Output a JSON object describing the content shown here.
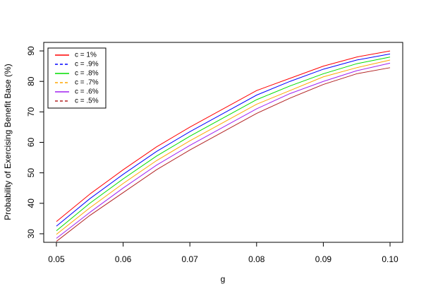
{
  "chart_data": {
    "type": "line",
    "x_label": "g",
    "y_label": "Probability of Exercising Benefit Base (%)",
    "x": [
      0.05,
      0.055,
      0.06,
      0.065,
      0.07,
      0.075,
      0.08,
      0.085,
      0.09,
      0.095,
      0.1
    ],
    "series": [
      {
        "name": "c = 1%",
        "color": "#ff0000",
        "linestyle": "solid",
        "values": [
          34,
          43,
          51,
          58.5,
          65,
          71,
          77,
          81,
          85,
          88,
          90
        ]
      },
      {
        "name": "c = .9%",
        "color": "#0000ff",
        "linestyle": "dashed",
        "values": [
          32.5,
          41.5,
          49.5,
          57,
          63.5,
          69.5,
          75.5,
          80,
          84,
          87,
          89
        ]
      },
      {
        "name": "c = .8%",
        "color": "#00dd00",
        "linestyle": "solid",
        "values": [
          31,
          40,
          48,
          55.5,
          62,
          68,
          74,
          78.5,
          82.5,
          85.8,
          88
        ]
      },
      {
        "name": "c = .7%",
        "color": "#ffa500",
        "linestyle": "dashed",
        "values": [
          29.8,
          38.5,
          46.5,
          54,
          60.5,
          66.5,
          72.5,
          77,
          81.5,
          84.5,
          87
        ]
      },
      {
        "name": "c = .6%",
        "color": "#a020f0",
        "linestyle": "solid",
        "values": [
          28.5,
          37,
          45,
          52.5,
          59,
          65,
          71,
          76,
          80,
          83.5,
          86
        ]
      },
      {
        "name": "c = .5%",
        "color": "#b22222",
        "linestyle": "dashed",
        "values": [
          27.5,
          36,
          43.5,
          51,
          57.5,
          63.5,
          69.5,
          74.5,
          79,
          82.5,
          84.5
        ]
      }
    ],
    "xlim": [
      0.0481,
      0.1019
    ],
    "ylim": [
      27.2,
      92.8
    ],
    "xticks": [
      0.05,
      0.06,
      0.07,
      0.08,
      0.09,
      {
        "value": 0.1,
        "label": "0.10"
      }
    ],
    "yticks": [
      30,
      40,
      50,
      60,
      70,
      80,
      90
    ],
    "legend": "top-left",
    "grid": false
  }
}
